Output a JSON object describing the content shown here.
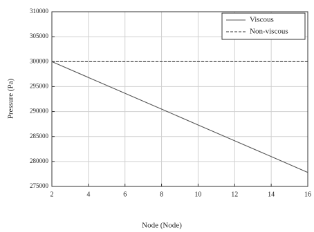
{
  "chart_data": {
    "type": "line",
    "x_label": "Node (Node)",
    "y_label": "Pressure (Pa)",
    "x": [
      2,
      4,
      6,
      8,
      10,
      12,
      14,
      16
    ],
    "series": [
      {
        "name": "Viscous",
        "color": "#555555",
        "line_style": "solid",
        "values": [
          300000,
          296830,
          293660,
          290490,
          287320,
          284150,
          280980,
          277800
        ]
      },
      {
        "name": "Non-viscous",
        "color": "#333333",
        "line_style": "dashed",
        "values": [
          300000,
          300000,
          300000,
          300000,
          300000,
          300000,
          300000,
          300000
        ]
      }
    ],
    "xlim": [
      2,
      16
    ],
    "xticks": [
      2,
      4,
      6,
      8,
      10,
      12,
      14,
      16
    ],
    "ylim": [
      275000,
      310000
    ],
    "yticks": [
      275000,
      280000,
      285000,
      290000,
      295000,
      300000,
      305000,
      310000
    ],
    "grid": true,
    "legend": "top-right"
  }
}
